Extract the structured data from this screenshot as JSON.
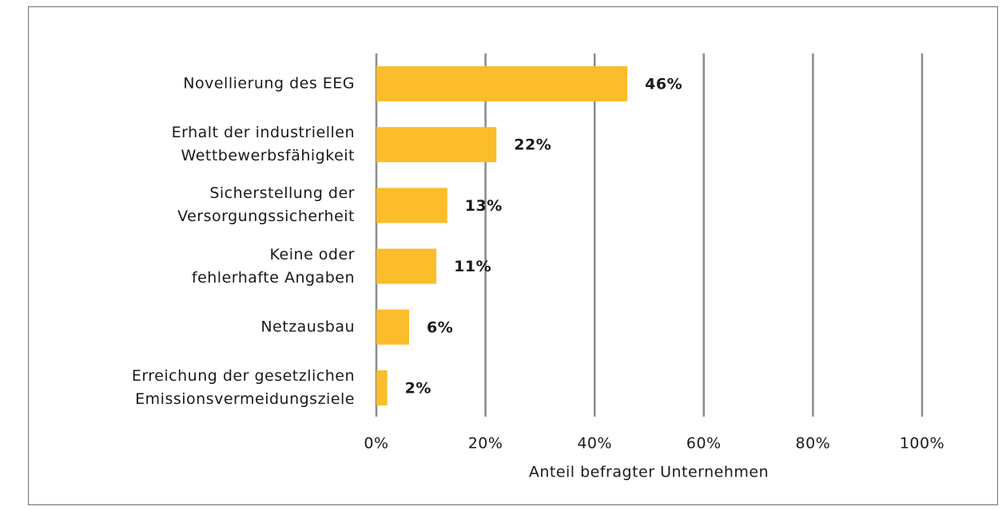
{
  "chart_data": {
    "type": "barh",
    "categories": [
      "Novellierung des EEG",
      "Erhalt der industriellen\nWettbewerbsfähigkeit",
      "Sicherstellung der\nVersorgungssicherheit",
      "Keine oder\nfehlerhafte Angaben",
      "Netzausbau",
      "Erreichung der gesetzlichen\nEmissionsvermeidungsziele"
    ],
    "values": [
      46,
      22,
      13,
      11,
      6,
      2
    ],
    "value_labels": [
      "46%",
      "22%",
      "13%",
      "11%",
      "6%",
      "2%"
    ],
    "color": "#fbbd2b",
    "xlabel": "Anteil befragter Unternehmen",
    "xlim": [
      0,
      100
    ],
    "xticks": [
      {
        "value": 0,
        "label": "0%"
      },
      {
        "value": 20,
        "label": "20%"
      },
      {
        "value": 40,
        "label": "40%"
      },
      {
        "value": 60,
        "label": "60%"
      },
      {
        "value": 80,
        "label": "80%"
      },
      {
        "value": 100,
        "label": "100%"
      }
    ],
    "grid": true
  }
}
